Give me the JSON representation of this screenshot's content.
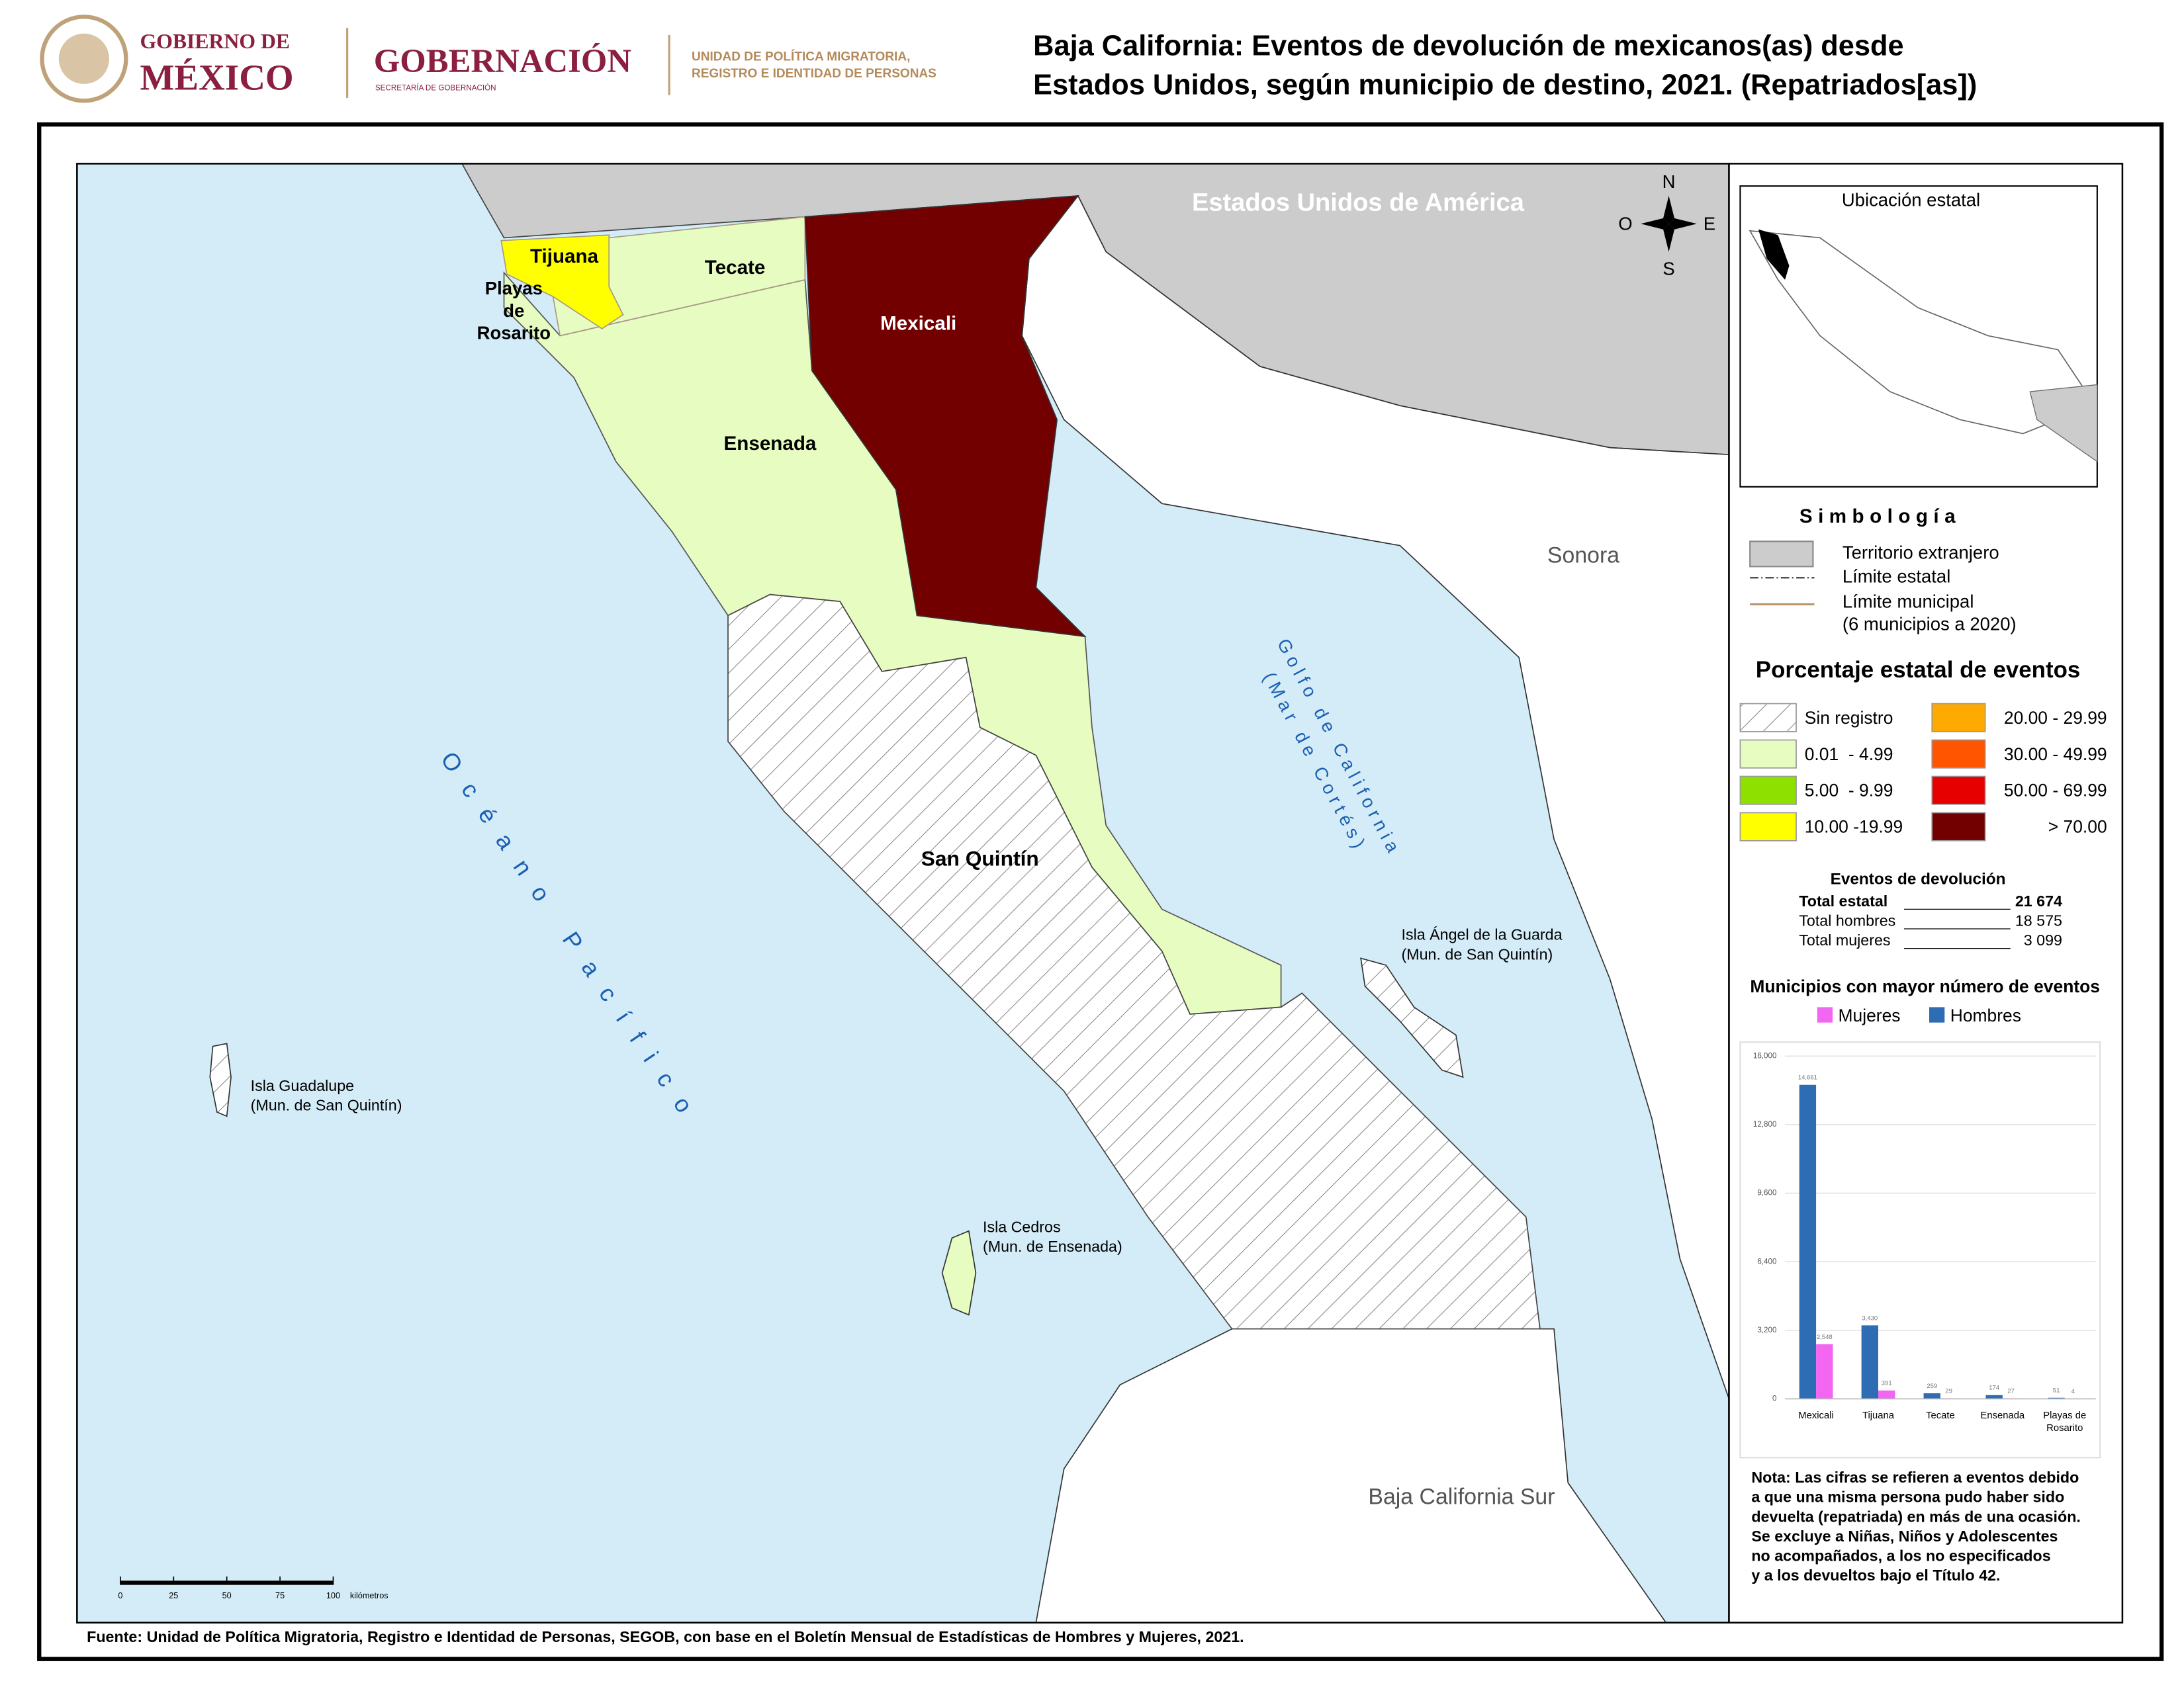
{
  "header": {
    "logo_1_top": "GOBIERNO DE",
    "logo_1_bottom": "MÉXICO",
    "logo_2_title": "GOBERNACIÓN",
    "logo_2_subtitle": "SECRETARÍA DE GOBERNACIÓN",
    "logo_3_line_1": "UNIDAD DE POLÍTICA MIGRATORIA,",
    "logo_3_line_2": "REGISTRO E IDENTIDAD DE PERSONAS",
    "title_line_1": "Baja California: Eventos de devolución de mexicanos(as) desde",
    "title_line_2": "Estados Unidos, según municipio de destino, 2021. (Repatriados[as])"
  },
  "map": {
    "country": "Estados Unidos de América",
    "municipalities": {
      "tijuana": "Tijuana",
      "tecate": "Tecate",
      "playas": [
        "Playas",
        "de",
        "Rosarito"
      ],
      "mexicali": "Mexicali",
      "ensenada": "Ensenada",
      "san_quintin": "San Quintín"
    },
    "states": {
      "sonora": "Sonora",
      "bcs": "Baja California Sur"
    },
    "ocean": "Océano Pacífico",
    "gulf": [
      "Golfo de California",
      "(Mar de Cortés)"
    ],
    "islands": [
      {
        "name": "Isla Ángel de la Guarda",
        "municipality": "(Mun. de San Quintín)"
      },
      {
        "name": "Isla Guadalupe",
        "municipality": "(Mun. de San Quintín)"
      },
      {
        "name": "Isla Cedros",
        "municipality": "(Mun. de Ensenada)"
      }
    ],
    "compass": {
      "north": "N",
      "south": "S",
      "east": "E",
      "west": "O"
    },
    "scale": {
      "ticks": [
        0,
        25,
        50,
        75,
        100
      ],
      "unit": "kilómetros"
    }
  },
  "inset": {
    "title": "Ubicación estatal"
  },
  "symbology": {
    "title": "Simbología",
    "items": [
      "Territorio extranjero",
      "Límite estatal",
      "Límite municipal",
      "(6 municipios a 2020)"
    ]
  },
  "legend": {
    "title": "Porcentaje estatal de eventos",
    "classes": [
      {
        "label": "Sin registro"
      },
      {
        "label": "0.01  - 4.99",
        "color": "#e6fcc0"
      },
      {
        "label": "5.00  - 9.99",
        "color": "#8ee000"
      },
      {
        "label": "10.00 -19.99",
        "color": "#ffff00"
      },
      {
        "label": "20.00 - 29.99",
        "color": "#ffaa00"
      },
      {
        "label": "30.00 - 49.99",
        "color": "#ff5500"
      },
      {
        "label": "50.00 - 69.99",
        "color": "#e60000"
      },
      {
        "label": "> 70.00",
        "color": "#730000"
      }
    ]
  },
  "totals": {
    "title": "Eventos de devolución",
    "rows": [
      {
        "label": "Total estatal",
        "value": "21 674"
      },
      {
        "label": "Total hombres",
        "value": "18 575"
      },
      {
        "label": "Total mujeres",
        "value": "3 099"
      }
    ]
  },
  "chart_data": {
    "type": "bar",
    "title": "Municipios con mayor número de eventos",
    "categories": [
      "Mexicali",
      "Tijuana",
      "Tecate",
      "Ensenada",
      "Playas de Rosarito"
    ],
    "series": [
      {
        "name": "Mujeres",
        "color": "#f266f2",
        "values": [
          2548,
          391,
          29,
          27,
          4
        ],
        "value_labels": [
          "2,548",
          "391",
          "29",
          "27",
          "4"
        ]
      },
      {
        "name": "Hombres",
        "color": "#2e6db4",
        "values": [
          14661,
          3430,
          259,
          174,
          51
        ],
        "value_labels": [
          "14,661",
          "3,430",
          "259",
          "174",
          "51"
        ]
      }
    ],
    "ylim": [
      0,
      16000
    ],
    "yticks": [
      0,
      {
        "value": 3200,
        "label": "3,200"
      },
      {
        "value": 6400,
        "label": "6,400"
      },
      {
        "value": 9600,
        "label": "9,600"
      },
      {
        "value": 12800,
        "label": "12,800"
      },
      {
        "value": 16000,
        "label": "16,000"
      }
    ],
    "grid": true
  },
  "note": {
    "lines": [
      "Nota: Las cifras se refieren a eventos debido",
      "a que una misma persona pudo haber sido",
      "devuelta (repatriada) en más de una ocasión.",
      "Se excluye a Niñas, Niños y Adolescentes",
      "no acompañados, a los no especificados",
      "y a los devueltos bajo el Título 42."
    ]
  },
  "source": "Fuente: Unidad de Política Migratoria, Registro e Identidad de Personas, SEGOB, con base en el Boletín Mensual de Estadísticas de Hombres y Mujeres, 2021."
}
